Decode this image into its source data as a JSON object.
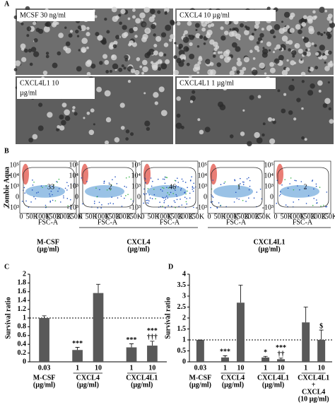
{
  "panel_a": {
    "label": "A",
    "images": [
      {
        "lines": [
          "MCSF 30 ng/ml"
        ]
      },
      {
        "lines": [
          "CXCL4 10 µg/ml"
        ]
      },
      {
        "lines": [
          "CXCL4L1 10",
          "µg/ml"
        ]
      },
      {
        "lines": [
          "CXCL4L1 1 µg/ml"
        ]
      }
    ]
  },
  "panel_b": {
    "label": "B",
    "y_label": "Zombie Aqua",
    "x_label": "FSC-A",
    "x_ticks": [
      "0",
      "50K",
      "100K",
      "150K",
      "200K",
      "250K"
    ],
    "y_ticks": [
      "10⁵",
      "10⁴",
      "10³",
      "0",
      "-10³"
    ],
    "groups": [
      {
        "lines": [
          "M-CSF",
          "(µg/ml)"
        ],
        "gates": [
          33
        ]
      },
      {
        "lines": [
          "CXCL4",
          "(µg/ml)"
        ],
        "gates": [
          2,
          46
        ]
      },
      {
        "lines": [
          "CXCL4L1",
          "(µg/ml)"
        ],
        "gates": [
          1,
          2
        ]
      }
    ]
  },
  "chart_data": [
    {
      "type": "bar",
      "panel": "C",
      "y_label": "Survival ratio",
      "ylim": [
        0,
        2
      ],
      "yticks": [
        0,
        0.2,
        0.4,
        0.6,
        0.8,
        1,
        1.2,
        1.4,
        1.6,
        1.8,
        2
      ],
      "reference_line": 1,
      "color": "#595959",
      "groups": [
        {
          "lines": [
            "M-CSF",
            "(µg/ml)"
          ],
          "categories": [
            "0.03"
          ]
        },
        {
          "lines": [
            "CXCL4",
            "(µg/ml)"
          ],
          "categories": [
            "1",
            "10"
          ]
        },
        {
          "lines": [
            "CXCL4L1",
            "(µg/ml)"
          ],
          "categories": [
            "1",
            "10"
          ]
        }
      ],
      "values": [
        1.0,
        0.27,
        1.57,
        0.33,
        0.37
      ],
      "errors": [
        0.05,
        0.06,
        0.2,
        0.08,
        0.1
      ],
      "marks": [
        [],
        [
          "***"
        ],
        [],
        [
          "***"
        ],
        [
          "***",
          "†††"
        ]
      ]
    },
    {
      "type": "bar",
      "panel": "D",
      "y_label": "Survival ratio",
      "ylim": [
        0,
        4
      ],
      "yticks": [
        0,
        0.5,
        1,
        1.5,
        2,
        2.5,
        3,
        3.5,
        4
      ],
      "reference_line": 1,
      "color": "#595959",
      "groups": [
        {
          "lines": [
            "M-CSF",
            "(µg/ml)"
          ],
          "categories": [
            "0.03"
          ]
        },
        {
          "lines": [
            "CXCL4",
            "(µg/ml)"
          ],
          "categories": [
            "1",
            "10"
          ]
        },
        {
          "lines": [
            "CXCL4L1",
            "(µg/ml)"
          ],
          "categories": [
            "1",
            "10"
          ]
        },
        {
          "lines": [
            "CXCL4L1",
            "+",
            "CXCL4",
            "(10 µg/ml)"
          ],
          "categories": [
            "1",
            "10"
          ]
        }
      ],
      "values": [
        1.0,
        0.2,
        2.7,
        0.2,
        0.12,
        1.8,
        1.0
      ],
      "errors": [
        0,
        0.08,
        0.8,
        0.05,
        0.05,
        0.7,
        0.45
      ],
      "marks": [
        [],
        [
          "***"
        ],
        [],
        [
          "*"
        ],
        [
          "***",
          "††"
        ],
        [],
        [
          "$"
        ]
      ]
    }
  ]
}
